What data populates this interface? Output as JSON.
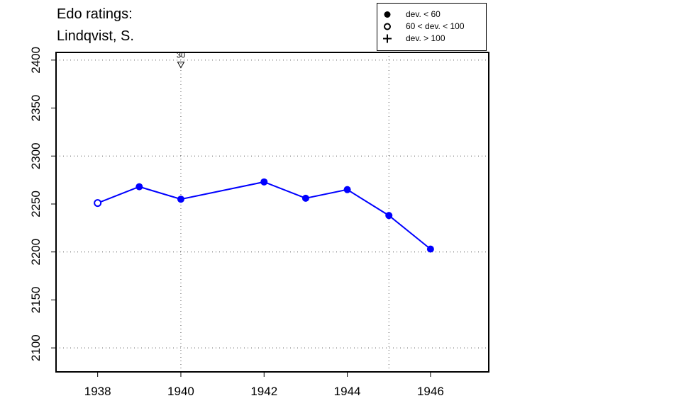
{
  "title_line1": "Edo ratings:",
  "title_line2": "Lindqvist, S.",
  "legend": [
    {
      "symbol": "filled-circle",
      "label": "dev. < 60"
    },
    {
      "symbol": "open-circle",
      "label": "60 < dev. < 100"
    },
    {
      "symbol": "plus",
      "label": "dev. > 100"
    }
  ],
  "chart_data": {
    "type": "line",
    "xlim": [
      1937,
      1947.4
    ],
    "ylim": [
      2075,
      2408
    ],
    "xticks": [
      1938,
      1940,
      1942,
      1944,
      1946
    ],
    "yticks": [
      2100,
      2150,
      2200,
      2250,
      2300,
      2350,
      2400
    ],
    "grid_x": [
      1940,
      1945
    ],
    "grid_y": [
      2100,
      2200,
      2300,
      2400
    ],
    "grid": "dotted",
    "legend_position": "top-right",
    "series": [
      {
        "color": "#0000ff",
        "points": [
          {
            "x": 1938,
            "y": 2251,
            "marker": "open-circle"
          },
          {
            "x": 1939,
            "y": 2268,
            "marker": "filled-circle"
          },
          {
            "x": 1940,
            "y": 2255,
            "marker": "filled-circle"
          },
          {
            "x": 1942,
            "y": 2273,
            "marker": "filled-circle"
          },
          {
            "x": 1943,
            "y": 2256,
            "marker": "filled-circle"
          },
          {
            "x": 1944,
            "y": 2265,
            "marker": "filled-circle"
          },
          {
            "x": 1945,
            "y": 2238,
            "marker": "filled-circle"
          },
          {
            "x": 1946,
            "y": 2203,
            "marker": "filled-circle"
          }
        ]
      }
    ],
    "annotations": [
      {
        "x": 1940,
        "y": 2395,
        "marker": "open-triangle-down",
        "label": "30"
      }
    ]
  }
}
